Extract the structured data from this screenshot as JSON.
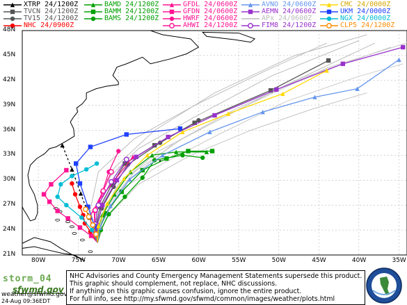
{
  "legend": [
    {
      "label": "XTRP  24/1200Z",
      "color": "#000000",
      "marker": "triangle"
    },
    {
      "label": "TVCN  24/1200Z",
      "color": "#555555",
      "marker": "square"
    },
    {
      "label": "TV15  24/1200Z",
      "color": "#555555",
      "marker": "circle"
    },
    {
      "label": "NHC  24/0900Z",
      "color": "#ff0000",
      "marker": "circle"
    },
    {
      "label": "BAMD  24/1200Z",
      "color": "#00a000",
      "marker": "triangle"
    },
    {
      "label": "BAMM  24/1200Z",
      "color": "#00a000",
      "marker": "square"
    },
    {
      "label": "BAMS  24/1200Z",
      "color": "#00a000",
      "marker": "circle"
    },
    {
      "label": "GFDL  24/0600Z",
      "color": "#ff1493",
      "marker": "triangle"
    },
    {
      "label": "GFDN  24/0600Z",
      "color": "#ff1493",
      "marker": "square"
    },
    {
      "label": "HWRF  24/0600Z",
      "color": "#ff1493",
      "marker": "circle"
    },
    {
      "label": "AHWI  24/1200Z",
      "color": "#ff1493",
      "marker": "ring"
    },
    {
      "label": "AVNO  24/0600Z",
      "color": "#6495ed",
      "marker": "triangle"
    },
    {
      "label": "AEMN  24/0600Z",
      "color": "#9932cc",
      "marker": "square"
    },
    {
      "label": "APx   24/0600Z",
      "color": "#bbbbbb",
      "marker": "none"
    },
    {
      "label": "FIM8  24/1200Z",
      "color": "#9932cc",
      "marker": "ring"
    },
    {
      "label": "CMC  24/0000Z",
      "color": "#ffd700",
      "marker": "triangle"
    },
    {
      "label": "UKM  24/0000Z",
      "color": "#1e40ff",
      "marker": "square"
    },
    {
      "label": "NGX  24/0000Z",
      "color": "#00bcd4",
      "marker": "circle"
    },
    {
      "label": "CLP5  24/1200Z",
      "color": "#ff8c00",
      "marker": "ring"
    }
  ],
  "axes": {
    "lat_labels": [
      "48N",
      "45N",
      "42N",
      "39N",
      "36N",
      "33N",
      "30N",
      "27N",
      "24N",
      "21N"
    ],
    "lon_labels": [
      "80W",
      "75W",
      "70W",
      "65W",
      "60W",
      "55W",
      "50W",
      "45W",
      "40W",
      "35W"
    ]
  },
  "footer": {
    "storm": "storm_04",
    "site": "sfwmd.gov",
    "email": "weather@sfwmd.gov",
    "timestamp": "24-Aug 09:36EDT",
    "disclaimer": [
      "NHC Advisories and County Emergency Management Statements supersede this product.",
      "This graphic should complement, not replace, NHC discussions.",
      "If anything on this graphic causes confusion, ignore the entire product.",
      "For full info, see  http://my.sfwmd.gov/sfwmd/common/images/weather/plots.html"
    ]
  },
  "colors": {
    "land": "#ffffff",
    "ocean": "#ffffff",
    "coast": "#000000",
    "grid": "#aaaaaa",
    "water": "#c8d8ff"
  },
  "tracks": [
    {
      "name": "XTRP",
      "color": "#000000",
      "marker": "triangle",
      "pts": [
        [
          -72.6,
          22.5
        ],
        [
          -73.6,
          25.5
        ],
        [
          -74.7,
          28.4
        ],
        [
          -75.8,
          31.3
        ],
        [
          -77.0,
          34.2
        ]
      ]
    },
    {
      "name": "TVCN",
      "color": "#555555",
      "marker": "square",
      "pts": [
        [
          -72.6,
          22.5
        ],
        [
          -72.8,
          24.5
        ],
        [
          -72.3,
          26.8
        ],
        [
          -70.8,
          29.5
        ],
        [
          -69.2,
          32.0
        ],
        [
          -65.5,
          34.2
        ],
        [
          -60.5,
          36.9
        ],
        [
          -51.0,
          40.8
        ],
        [
          -43.8,
          44.4
        ]
      ]
    },
    {
      "name": "TV15",
      "color": "#555555",
      "marker": "circle",
      "pts": [
        [
          -72.6,
          22.5
        ],
        [
          -72.7,
          24.4
        ],
        [
          -72.1,
          26.6
        ],
        [
          -70.6,
          29.2
        ],
        [
          -68.8,
          31.9
        ],
        [
          -64.8,
          34.5
        ],
        [
          -60.0,
          37.2
        ]
      ]
    },
    {
      "name": "NHC",
      "color": "#ff0000",
      "marker": "circle",
      "pts": [
        [
          -72.6,
          22.5
        ],
        [
          -73.5,
          23.8
        ],
        [
          -74.2,
          24.8
        ],
        [
          -74.4,
          25.8
        ],
        [
          -74.8,
          26.8
        ],
        [
          -75.4,
          28.3
        ],
        [
          -75.8,
          29.6
        ]
      ]
    },
    {
      "name": "BAMD",
      "color": "#00a000",
      "marker": "triangle",
      "pts": [
        [
          -72.6,
          22.5
        ],
        [
          -72.6,
          24.0
        ],
        [
          -72.0,
          25.8
        ],
        [
          -70.5,
          28.3
        ],
        [
          -68.5,
          31.0
        ],
        [
          -65.8,
          33.0
        ],
        [
          -62.8,
          33.4
        ],
        [
          -59.0,
          33.4
        ]
      ]
    },
    {
      "name": "BAMM",
      "color": "#00a000",
      "marker": "square",
      "pts": [
        [
          -72.6,
          22.5
        ],
        [
          -72.4,
          24.0
        ],
        [
          -71.6,
          26.0
        ],
        [
          -69.6,
          28.6
        ],
        [
          -67.0,
          31.2
        ],
        [
          -64.0,
          32.6
        ],
        [
          -61.3,
          33.5
        ],
        [
          -58.3,
          33.5
        ]
      ]
    },
    {
      "name": "BAMS",
      "color": "#00a000",
      "marker": "circle",
      "pts": [
        [
          -72.6,
          22.5
        ],
        [
          -72.2,
          24.0
        ],
        [
          -71.2,
          25.9
        ],
        [
          -69.2,
          28.0
        ],
        [
          -67.0,
          30.3
        ],
        [
          -65.5,
          32.4
        ],
        [
          -62.0,
          33.0
        ],
        [
          -59.5,
          32.7
        ]
      ]
    },
    {
      "name": "GFDL",
      "color": "#ff1493",
      "marker": "triangle",
      "pts": [
        [
          -72.6,
          22.5
        ],
        [
          -73.2,
          24.0
        ],
        [
          -73.6,
          25.6
        ],
        [
          -72.4,
          27.6
        ],
        [
          -70.5,
          30.0
        ],
        [
          -68.2,
          32.8
        ]
      ]
    },
    {
      "name": "GFDN",
      "color": "#ff1493",
      "marker": "square",
      "pts": [
        [
          -72.6,
          22.5
        ],
        [
          -73.4,
          23.3
        ],
        [
          -74.8,
          24.3
        ],
        [
          -76.3,
          25.4
        ],
        [
          -77.6,
          26.3
        ],
        [
          -78.6,
          27.4
        ],
        [
          -79.3,
          28.3
        ],
        [
          -78.4,
          29.5
        ],
        [
          -76.5,
          31.2
        ]
      ]
    },
    {
      "name": "HWRF",
      "color": "#ff1493",
      "marker": "circle",
      "pts": [
        [
          -72.6,
          22.5
        ],
        [
          -73.0,
          24.5
        ],
        [
          -73.0,
          26.3
        ],
        [
          -72.0,
          28.6
        ],
        [
          -71.2,
          31.0
        ],
        [
          -70.0,
          33.5
        ]
      ]
    },
    {
      "name": "AHWI",
      "color": "#ff1493",
      "marker": "ring",
      "pts": [
        [
          -72.6,
          22.5
        ],
        [
          -73.0,
          24.5
        ],
        [
          -72.9,
          26.4
        ],
        [
          -71.9,
          28.7
        ],
        [
          -70.9,
          31.0
        ]
      ]
    },
    {
      "name": "AVNO",
      "color": "#6495ed",
      "marker": "triangle",
      "pts": [
        [
          -72.6,
          22.5
        ],
        [
          -72.3,
          24.3
        ],
        [
          -71.0,
          26.9
        ],
        [
          -68.6,
          30.1
        ],
        [
          -64.5,
          33.0
        ],
        [
          -58.6,
          35.8
        ],
        [
          -52.0,
          38.2
        ],
        [
          -45.5,
          40.0
        ],
        [
          -40.2,
          41.0
        ],
        [
          -35.0,
          44.5
        ]
      ]
    },
    {
      "name": "AEMN",
      "color": "#9932cc",
      "marker": "square",
      "pts": [
        [
          -72.6,
          22.5
        ],
        [
          -72.7,
          24.6
        ],
        [
          -72.0,
          27.0
        ],
        [
          -70.2,
          30.0
        ],
        [
          -67.8,
          32.8
        ],
        [
          -63.8,
          35.2
        ],
        [
          -58.0,
          37.8
        ],
        [
          -50.3,
          40.9
        ],
        [
          -42.0,
          44.0
        ],
        [
          -34.5,
          46.0
        ]
      ]
    },
    {
      "name": "FIM8",
      "color": "#9932cc",
      "marker": "ring",
      "pts": [
        [
          -72.6,
          22.5
        ],
        [
          -72.9,
          24.7
        ],
        [
          -72.5,
          27.0
        ],
        [
          -70.9,
          29.8
        ],
        [
          -69.0,
          32.5
        ]
      ]
    },
    {
      "name": "CMC",
      "color": "#ffd700",
      "marker": "triangle",
      "pts": [
        [
          -72.6,
          22.5
        ],
        [
          -72.5,
          24.5
        ],
        [
          -71.4,
          27.2
        ],
        [
          -69.3,
          30.2
        ],
        [
          -66.4,
          33.0
        ],
        [
          -62.0,
          35.8
        ],
        [
          -56.3,
          38.0
        ],
        [
          -49.5,
          40.4
        ],
        [
          -44.0,
          43.2
        ]
      ]
    },
    {
      "name": "UKM",
      "color": "#1e40ff",
      "marker": "square",
      "pts": [
        [
          -72.6,
          22.5
        ],
        [
          -73.0,
          24.5
        ],
        [
          -73.8,
          26.8
        ],
        [
          -74.8,
          29.6
        ],
        [
          -75.3,
          32.0
        ],
        [
          -73.5,
          34.0
        ],
        [
          -69.0,
          35.5
        ],
        [
          -62.3,
          36.2
        ]
      ]
    },
    {
      "name": "NGX",
      "color": "#00bcd4",
      "marker": "circle",
      "pts": [
        [
          -72.6,
          22.5
        ],
        [
          -73.3,
          24.0
        ],
        [
          -74.6,
          25.5
        ],
        [
          -76.5,
          27.0
        ],
        [
          -77.6,
          28.0
        ],
        [
          -77.2,
          29.5
        ],
        [
          -75.8,
          30.5
        ],
        [
          -74.0,
          31.3
        ],
        [
          -72.7,
          32.0
        ]
      ]
    },
    {
      "name": "CLP5",
      "color": "#ff8c00",
      "marker": "ring",
      "pts": [
        [
          -72.6,
          22.5
        ],
        [
          -72.8,
          23.5
        ],
        [
          -73.2,
          24.6
        ],
        [
          -73.7,
          25.6
        ],
        [
          -74.1,
          26.5
        ]
      ]
    },
    {
      "name": "APx1",
      "color": "#bbbbbb",
      "marker": "none",
      "pts": [
        [
          -72.6,
          22.5
        ],
        [
          -72.3,
          25.5
        ],
        [
          -70.0,
          29.5
        ],
        [
          -65.0,
          33.5
        ],
        [
          -58.0,
          37.0
        ],
        [
          -49.0,
          41.5
        ],
        [
          -38.0,
          46.5
        ]
      ]
    },
    {
      "name": "APx2",
      "color": "#c8c8c8",
      "marker": "none",
      "pts": [
        [
          -72.6,
          22.5
        ],
        [
          -71.8,
          26.5
        ],
        [
          -68.0,
          31.0
        ],
        [
          -62.0,
          35.0
        ],
        [
          -54.0,
          39.0
        ],
        [
          -44.0,
          43.5
        ],
        [
          -34.0,
          46.5
        ]
      ]
    },
    {
      "name": "APx3",
      "color": "#bbbbbb",
      "marker": "none",
      "pts": [
        [
          -72.6,
          22.5
        ],
        [
          -73.0,
          26.0
        ],
        [
          -71.5,
          30.0
        ],
        [
          -67.5,
          33.8
        ],
        [
          -60.5,
          37.6
        ],
        [
          -51.0,
          42.5
        ],
        [
          -40.0,
          46.8
        ]
      ]
    },
    {
      "name": "APx4",
      "color": "#cccccc",
      "marker": "none",
      "pts": [
        [
          -72.6,
          22.5
        ],
        [
          -72.0,
          25.0
        ],
        [
          -69.5,
          29.0
        ],
        [
          -64.5,
          32.0
        ],
        [
          -57.5,
          35.5
        ],
        [
          -49.0,
          39.5
        ],
        [
          -40.0,
          42.5
        ],
        [
          -34.5,
          44.0
        ]
      ]
    },
    {
      "name": "APx5",
      "color": "#bbbbbb",
      "marker": "none",
      "pts": [
        [
          -72.6,
          22.5
        ],
        [
          -73.5,
          26.5
        ],
        [
          -72.5,
          31.0
        ],
        [
          -68.0,
          35.0
        ],
        [
          -60.5,
          39.0
        ],
        [
          -52.0,
          43.0
        ],
        [
          -44.0,
          46.5
        ]
      ]
    },
    {
      "name": "APx6",
      "color": "#c4c4c4",
      "marker": "none",
      "pts": [
        [
          -72.6,
          22.5
        ],
        [
          -71.5,
          25.5
        ],
        [
          -67.5,
          29.5
        ],
        [
          -61.0,
          33.0
        ],
        [
          -53.5,
          36.0
        ],
        [
          -46.0,
          38.5
        ],
        [
          -39.0,
          40.5
        ]
      ]
    },
    {
      "name": "APx7",
      "color": "#bdbdbd",
      "marker": "none",
      "pts": [
        [
          -72.6,
          22.5
        ],
        [
          -72.8,
          27.0
        ],
        [
          -70.5,
          31.5
        ],
        [
          -65.5,
          36.0
        ],
        [
          -58.0,
          40.5
        ],
        [
          -48.0,
          45.0
        ],
        [
          -39.0,
          47.5
        ]
      ]
    },
    {
      "name": "APx8",
      "color": "#c8c8c8",
      "marker": "none",
      "pts": [
        [
          -72.6,
          22.5
        ],
        [
          -72.0,
          26.0
        ],
        [
          -68.8,
          30.0
        ],
        [
          -63.0,
          34.5
        ],
        [
          -55.5,
          38.5
        ],
        [
          -46.5,
          42.5
        ],
        [
          -36.0,
          46.0
        ]
      ]
    }
  ]
}
